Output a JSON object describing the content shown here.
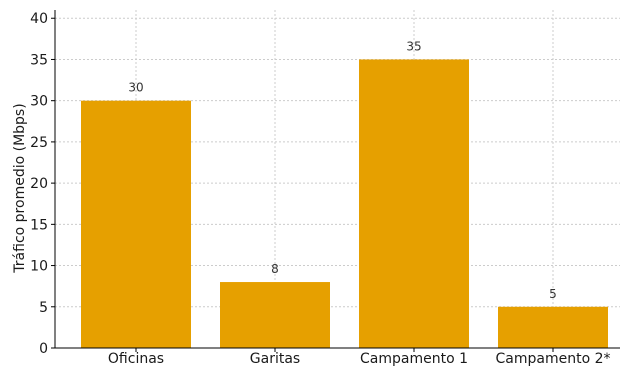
{
  "chart_data": {
    "type": "bar",
    "title": "",
    "xlabel": "",
    "ylabel": "Tráfico promedio (Mbps)",
    "categories": [
      "Oficinas",
      "Garitas",
      "Campamento 1",
      "Campamento 2*"
    ],
    "values": [
      30,
      8,
      35,
      5
    ],
    "data_labels": [
      "30",
      "8",
      "35",
      "5"
    ],
    "ylim": [
      0,
      41
    ],
    "yticks": [
      0,
      5,
      10,
      15,
      20,
      25,
      30,
      35,
      40
    ],
    "grid": true,
    "legend": "none",
    "colors": {
      "bar": "#E6A000",
      "grid": "#CCCCCC",
      "axis": "#000000"
    }
  }
}
